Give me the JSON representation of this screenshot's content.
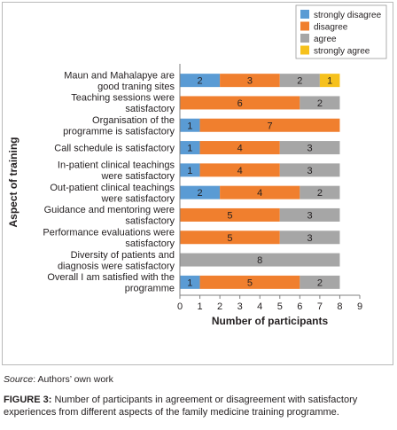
{
  "chart_data": {
    "type": "bar",
    "orientation": "horizontal",
    "stacked": true,
    "xlabel": "Number of participants",
    "ylabel": "Aspect of training",
    "xlim": [
      0,
      9
    ],
    "xticks": [
      0,
      1,
      2,
      3,
      4,
      5,
      6,
      7,
      8,
      9
    ],
    "grid": false,
    "legend_position": "top-right",
    "categories": [
      [
        "Maun and Mahalapye are",
        "good traning sites"
      ],
      [
        "Teaching sessions were",
        "satisfactory"
      ],
      [
        "Organisation of the",
        "programme is satisfactory"
      ],
      [
        "Call schedule is satisfactory"
      ],
      [
        "In-patient clinical teachings",
        "were satisfactory"
      ],
      [
        "Out-patient clinical teachings",
        "were satisfactory"
      ],
      [
        "Guidance and mentoring were",
        "satisfactory"
      ],
      [
        "Performance evaluations were",
        "satisfactory"
      ],
      [
        "Diversity of patients and",
        "diagnosis were satisfactory"
      ],
      [
        "Overall I am satisfied with the",
        "programme"
      ]
    ],
    "series": [
      {
        "name": "strongly disagree",
        "color": "#5a9bd4",
        "values": [
          2,
          0,
          1,
          1,
          1,
          2,
          0,
          0,
          0,
          1
        ]
      },
      {
        "name": "disagree",
        "color": "#f07f2e",
        "values": [
          3,
          6,
          7,
          4,
          4,
          4,
          5,
          5,
          0,
          5
        ]
      },
      {
        "name": "agree",
        "color": "#a6a6a6",
        "values": [
          2,
          2,
          0,
          3,
          3,
          2,
          3,
          3,
          8,
          2
        ]
      },
      {
        "name": "strongly agree",
        "color": "#f6c11c",
        "values": [
          1,
          0,
          0,
          0,
          0,
          0,
          0,
          0,
          0,
          0
        ]
      }
    ]
  },
  "captions": {
    "source_label": "Source",
    "source_text": ": Authors’ own work",
    "figure_label": "FIGURE 3:",
    "figure_text": " Number of participants in agreement or disagreement with satisfactory experiences from different aspects of the family medicine training programme."
  }
}
